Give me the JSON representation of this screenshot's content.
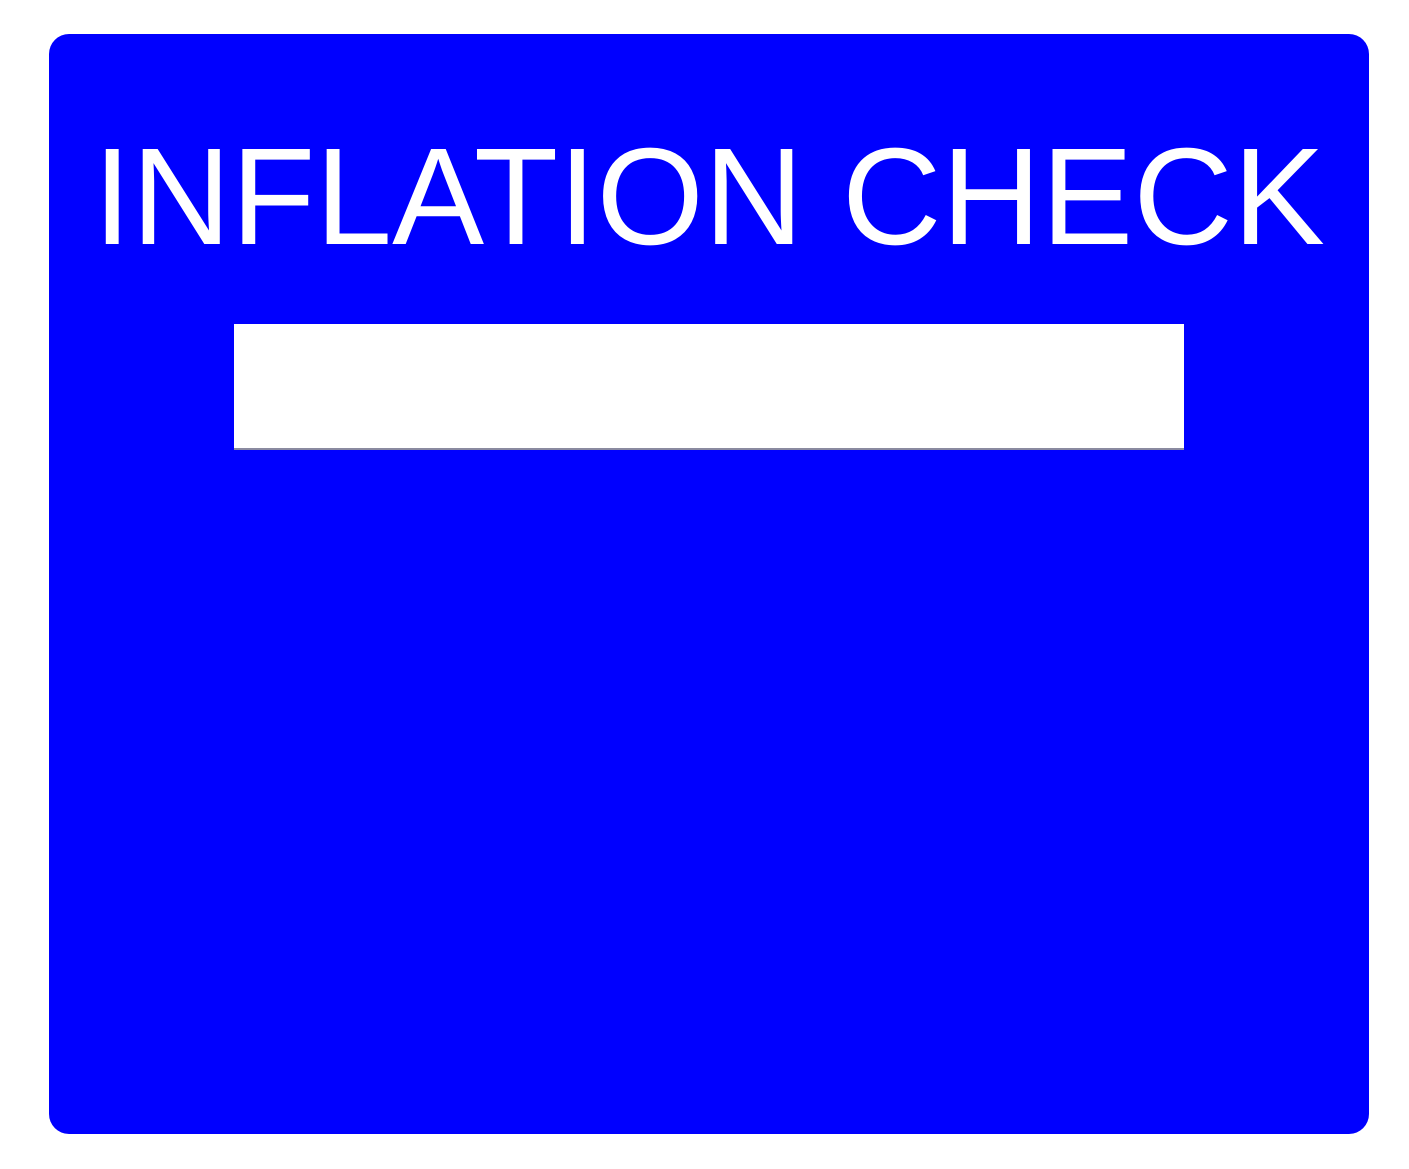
{
  "colors": {
    "panel_background": "#0000ff",
    "title_color": "#ffffff",
    "page_background": "#ffffff"
  },
  "panel": {
    "title": "INFLATION CHECK"
  },
  "input": {
    "value": "",
    "placeholder": ""
  }
}
